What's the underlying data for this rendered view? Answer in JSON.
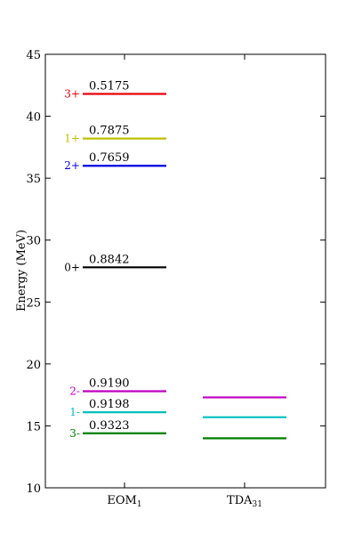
{
  "chart_data": {
    "type": "level_diagram",
    "title": "",
    "ylabel": "Energy (MeV)",
    "ylim": [
      10,
      45
    ],
    "yticks": [
      10,
      15,
      20,
      25,
      30,
      35,
      40,
      45
    ],
    "columns": [
      {
        "name": "EOM",
        "sub": "1"
      },
      {
        "name": "TDA",
        "sub": "31"
      }
    ],
    "levels": [
      {
        "column": 0,
        "state": "3+",
        "energy": 41.8,
        "value": "0.5175",
        "color": "#e8000b"
      },
      {
        "column": 0,
        "state": "1+",
        "energy": 38.2,
        "value": "0.7875",
        "color": "#bfbf00"
      },
      {
        "column": 0,
        "state": "2+",
        "energy": 36.0,
        "value": "0.7659",
        "color": "#0000e6"
      },
      {
        "column": 0,
        "state": "0+",
        "energy": 27.8,
        "value": "0.8842",
        "color": "#000000"
      },
      {
        "column": 0,
        "state": "2-",
        "energy": 17.8,
        "value": "0.9190",
        "color": "#bf00bf"
      },
      {
        "column": 0,
        "state": "1-",
        "energy": 16.1,
        "value": "0.9198",
        "color": "#00bfbf"
      },
      {
        "column": 0,
        "state": "3-",
        "energy": 14.4,
        "value": "0.9323",
        "color": "#007f00"
      },
      {
        "column": 1,
        "state": "",
        "energy": 17.3,
        "value": "",
        "color": "#bf00bf"
      },
      {
        "column": 1,
        "state": "",
        "energy": 15.7,
        "value": "",
        "color": "#00bfbf"
      },
      {
        "column": 1,
        "state": "",
        "energy": 14.0,
        "value": "",
        "color": "#007f00"
      }
    ]
  }
}
